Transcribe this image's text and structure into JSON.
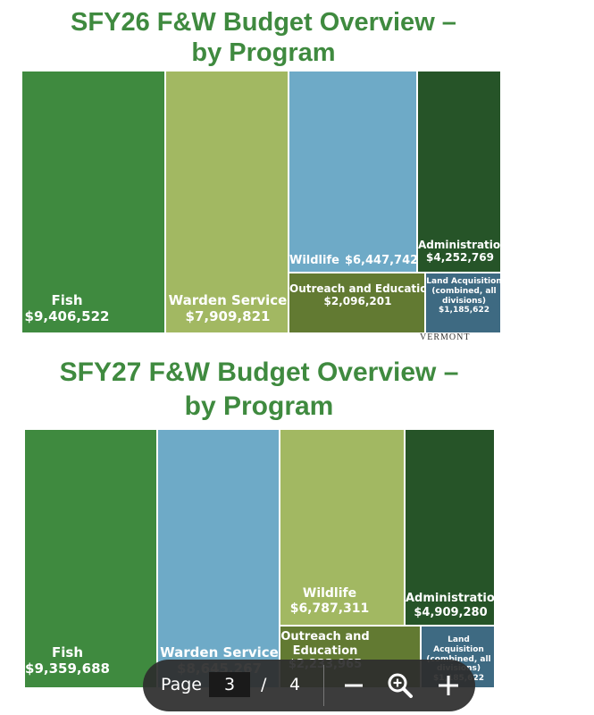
{
  "chart_data": [
    {
      "type": "treemap",
      "title": "SFY26 F&W Budget Overview – by Program",
      "categories": [
        "Fish",
        "Warden Service",
        "Wildlife",
        "Administration",
        "Outreach and Education",
        "Land Acquisition (combined, all divisions)"
      ],
      "values": [
        9406522,
        7909821,
        6447742,
        4252769,
        2096201,
        1185622
      ],
      "labels": [
        {
          "name": "Fish",
          "value": "$9,406,522"
        },
        {
          "name": "Warden Service",
          "value": "$7,909,821"
        },
        {
          "name": "Wildlife",
          "value": "$6,447,742"
        },
        {
          "name": "Administration",
          "value": "$4,252,769"
        },
        {
          "name": "Outreach and Education",
          "value": "$2,096,201"
        },
        {
          "name": "Land Acquisition (combined, all divisions)",
          "value": "$1,185,622"
        }
      ],
      "colors": [
        "#3f8a3f",
        "#a2b862",
        "#6eaac7",
        "#265428",
        "#627a32",
        "#3e6a82"
      ]
    },
    {
      "type": "treemap",
      "title": "SFY27 F&W Budget Overview – by Program",
      "categories": [
        "Fish",
        "Warden Service",
        "Wildlife",
        "Administration",
        "Outreach and Education",
        "Land Acquisition (combined, all divisions)"
      ],
      "values": [
        9359688,
        8645267,
        6787311,
        4909280,
        2233965,
        1185622
      ],
      "labels": [
        {
          "name": "Fish",
          "value": "$9,359,688"
        },
        {
          "name": "Warden Service",
          "value": "$8,645,267"
        },
        {
          "name": "Wildlife",
          "value": "$6,787,311"
        },
        {
          "name": "Administration",
          "value": "$4,909,280"
        },
        {
          "name": "Outreach and Education",
          "value": "$2,233,965"
        },
        {
          "name": "Land Acquisition (combined, all divisions)",
          "value": "$1,185,622"
        }
      ],
      "colors": [
        "#3f8a3f",
        "#6eaac7",
        "#a2b862",
        "#265428",
        "#627a32",
        "#3e6a82"
      ]
    }
  ],
  "titles": {
    "sfy26_line1": "SFY26 F&W Budget Overview –",
    "sfy26_line2": "by Program",
    "sfy27_line1": "SFY27 F&W Budget Overview –",
    "sfy27_line2": "by Program"
  },
  "watermark": "VERMONT",
  "toolbar": {
    "page_label": "Page",
    "current_page": "3",
    "separator": "/",
    "total_pages": "4"
  },
  "icons": [
    "zoom-out-icon",
    "zoom-in-icon",
    "plus-icon"
  ]
}
